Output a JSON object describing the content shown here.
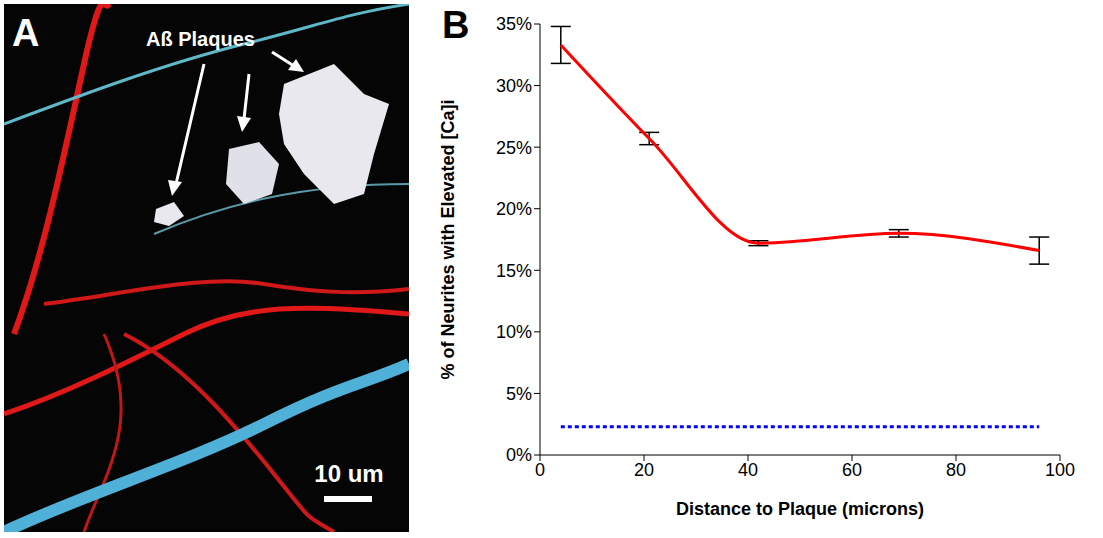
{
  "panel_a": {
    "letter": "A",
    "annotation": "Aß Plaques",
    "scale_bar": "10 um"
  },
  "chart_data": {
    "type": "line",
    "panel": "B",
    "x_label": "Distance to Plaque (microns)",
    "y_label": "% of Neurites with Elevated [Ca]i",
    "x": [
      4,
      21,
      42,
      69,
      96
    ],
    "series": [
      {
        "color": "#ff0000",
        "line_style": "solid",
        "marker": "none",
        "values": [
          33.3,
          25.7,
          17.2,
          18.0,
          16.6
        ],
        "errors": [
          1.5,
          0.5,
          0.2,
          0.3,
          1.1
        ]
      },
      {
        "color": "#0000ff",
        "line_style": "dashed",
        "marker": "none",
        "values": [
          2.3,
          2.3,
          2.3,
          2.3,
          2.3
        ]
      }
    ],
    "xlim": [
      0,
      100
    ],
    "xticks": [
      0,
      20,
      40,
      60,
      80,
      100
    ],
    "ylim": [
      0,
      35
    ],
    "yticks": [
      {
        "value": 0,
        "label": "0%"
      },
      {
        "value": 5,
        "label": "5%"
      },
      {
        "value": 10,
        "label": "10%"
      },
      {
        "value": 15,
        "label": "15%"
      },
      {
        "value": 20,
        "label": "20%"
      },
      {
        "value": 25,
        "label": "25%"
      },
      {
        "value": 30,
        "label": "30%"
      },
      {
        "value": 35,
        "label": "35%"
      }
    ],
    "grid": false
  }
}
